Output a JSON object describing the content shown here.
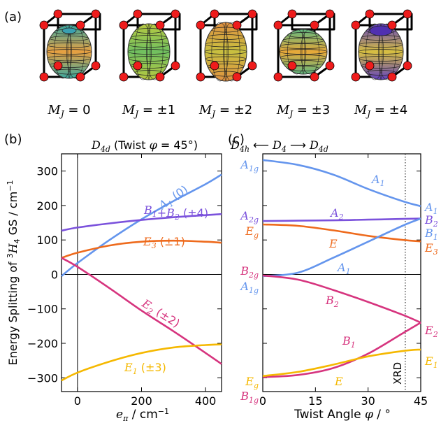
{
  "panel_labels": {
    "a": "(a)",
    "b": "(b)",
    "c": "(c)"
  },
  "panel_a": {
    "states": [
      {
        "label_main": "M",
        "label_sub": "J",
        "label_rest": " = 0",
        "top_color": "#3aa8a0",
        "mid_color": "#e8a040"
      },
      {
        "label_main": "M",
        "label_sub": "J",
        "label_rest": " = ±1",
        "top_color": "#b8c840",
        "mid_color": "#70c060"
      },
      {
        "label_main": "M",
        "label_sub": "J",
        "label_rest": " = ±2",
        "top_color": "#e09040",
        "mid_color": "#c8c040"
      },
      {
        "label_main": "M",
        "label_sub": "J",
        "label_rest": " = ±3",
        "top_color": "#60b880",
        "mid_color": "#e8a838"
      },
      {
        "label_main": "M",
        "label_sub": "J",
        "label_rest": " = ±4",
        "top_color": "#6040c0",
        "mid_color": "#d8c040"
      }
    ]
  },
  "chart_data": [
    {
      "type": "line",
      "panel": "b",
      "title": "D4d (Twist φ = 45°)",
      "xlabel": "eπ / cm⁻¹",
      "ylabel": "Energy Splitting of ³H₄ GS / cm⁻¹",
      "xlim": [
        -50,
        450
      ],
      "ylim": [
        -340,
        350
      ],
      "xticks": [
        0,
        200,
        400
      ],
      "yticks": [
        -300,
        -200,
        -100,
        0,
        100,
        200,
        300
      ],
      "grid": false,
      "series": [
        {
          "name": "A1 (0)",
          "color": "#6495ed",
          "x": [
            -50,
            0,
            100,
            200,
            300,
            400,
            450
          ],
          "y": [
            -5,
            33,
            100,
            160,
            213,
            262,
            290
          ]
        },
        {
          "name": "B1+B2 (±4)",
          "color": "#7b52dc",
          "x": [
            -50,
            0,
            100,
            200,
            300,
            400,
            450
          ],
          "y": [
            127,
            136,
            148,
            158,
            166,
            172,
            175
          ]
        },
        {
          "name": "E3 (±1)",
          "color": "#ee6a1c",
          "x": [
            -50,
            0,
            100,
            200,
            300,
            400,
            450
          ],
          "y": [
            48,
            63,
            84,
            95,
            98,
            95,
            92
          ]
        },
        {
          "name": "E2 (±2)",
          "color": "#d6347e",
          "x": [
            -50,
            0,
            100,
            200,
            300,
            400,
            450
          ],
          "y": [
            48,
            22,
            -40,
            -105,
            -165,
            -228,
            -260
          ]
        },
        {
          "name": "E1 (±3)",
          "color": "#f5b800",
          "x": [
            -50,
            0,
            100,
            200,
            300,
            400,
            450
          ],
          "y": [
            -308,
            -285,
            -253,
            -228,
            -212,
            -205,
            -203
          ]
        }
      ]
    },
    {
      "type": "line",
      "panel": "c",
      "title": "D4h ⟵ D4 ⟶ D4d",
      "xlabel": "Twist Angle φ / °",
      "ylabel": "",
      "xlim": [
        0,
        45
      ],
      "ylim": [
        -340,
        350
      ],
      "xticks": [
        0,
        15,
        30,
        45
      ],
      "grid": false,
      "annotation": {
        "text": "XRD",
        "x": 40.6
      },
      "left_labels": [
        "A1g",
        "A2g",
        "Eg",
        "B2g",
        "A1g",
        "Eg",
        "B1g"
      ],
      "right_labels": [
        "A1",
        "B2",
        "B1",
        "E3",
        "E2",
        "E1"
      ],
      "series": [
        {
          "name": "A1",
          "color": "#6495ed",
          "x": [
            0,
            10,
            20,
            30,
            40,
            45
          ],
          "y": [
            332,
            318,
            290,
            248,
            212,
            198
          ]
        },
        {
          "name": "A2",
          "color": "#7b52dc",
          "x": [
            0,
            10,
            20,
            30,
            40,
            45
          ],
          "y": [
            155,
            156,
            157,
            159,
            161,
            162
          ]
        },
        {
          "name": "E",
          "color": "#ee6a1c",
          "x": [
            0,
            10,
            20,
            30,
            40,
            45
          ],
          "y": [
            145,
            141,
            128,
            112,
            100,
            96
          ]
        },
        {
          "name": "A1",
          "color": "#6495ed",
          "x": [
            0,
            10,
            20,
            30,
            40,
            45
          ],
          "y": [
            -5,
            5,
            48,
            95,
            142,
            162
          ]
        },
        {
          "name": "B2",
          "color": "#d6347e",
          "x": [
            0,
            10,
            20,
            30,
            40,
            45
          ],
          "y": [
            -3,
            -15,
            -45,
            -80,
            -118,
            -140
          ]
        },
        {
          "name": "B1",
          "color": "#d6347e",
          "x": [
            0,
            10,
            20,
            30,
            40,
            45
          ],
          "y": [
            -298,
            -292,
            -272,
            -230,
            -170,
            -140
          ]
        },
        {
          "name": "E",
          "color": "#f5b800",
          "x": [
            0,
            10,
            20,
            30,
            40,
            45
          ],
          "y": [
            -295,
            -283,
            -262,
            -238,
            -222,
            -218
          ]
        }
      ]
    }
  ]
}
